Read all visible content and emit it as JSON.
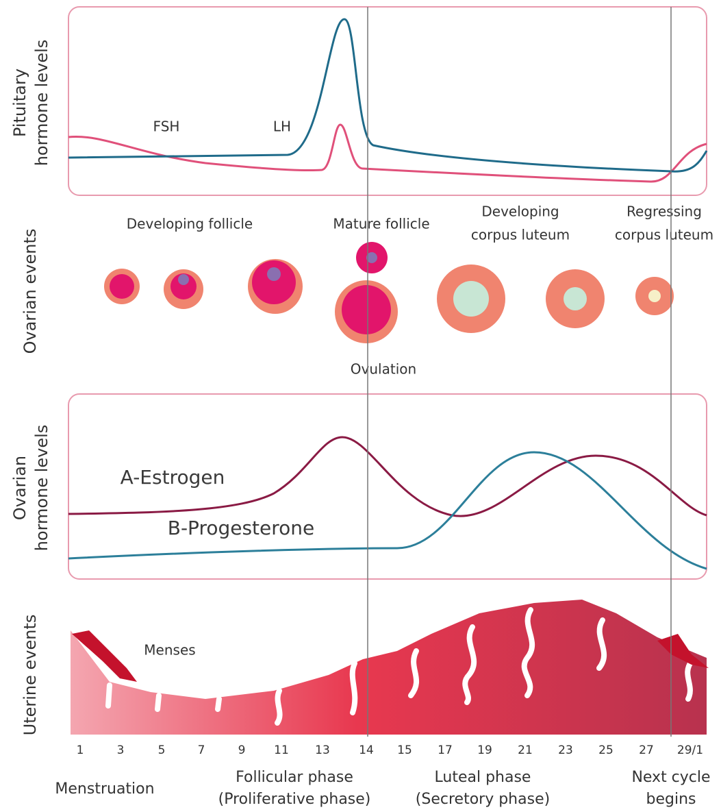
{
  "axis_labels": {
    "pituitary": [
      "Pituitary",
      "hormone levels"
    ],
    "ovarian_events": "Ovarian events",
    "ovarian_hormones": [
      "Ovarian",
      "hormone levels"
    ],
    "uterine": "Uterine events"
  },
  "hormones": {
    "fsh": "FSH",
    "lh": "LH",
    "estrogen": "A-Estrogen",
    "progesterone": "B-Progesterone"
  },
  "stages": {
    "developing_follicle": "Developing follicle",
    "mature_follicle": "Mature follicle",
    "developing_corpus_luteum": [
      "Developing",
      "corpus luteum"
    ],
    "regressing_corpus_luteum": [
      "Regressing",
      "corpus luteum"
    ],
    "ovulation": "Ovulation",
    "menses": "Menses"
  },
  "days": [
    "1",
    "3",
    "5",
    "7",
    "9",
    "11",
    "13",
    "14",
    "15",
    "17",
    "19",
    "21",
    "23",
    "25",
    "27",
    "29/1"
  ],
  "phases": {
    "menstruation": "Menstruation",
    "follicular": [
      "Follicular phase",
      "(Proliferative phase)"
    ],
    "luteal": [
      "Luteal phase",
      "(Secretory phase)"
    ],
    "next_cycle": [
      "Next cycle",
      "begins"
    ]
  }
}
